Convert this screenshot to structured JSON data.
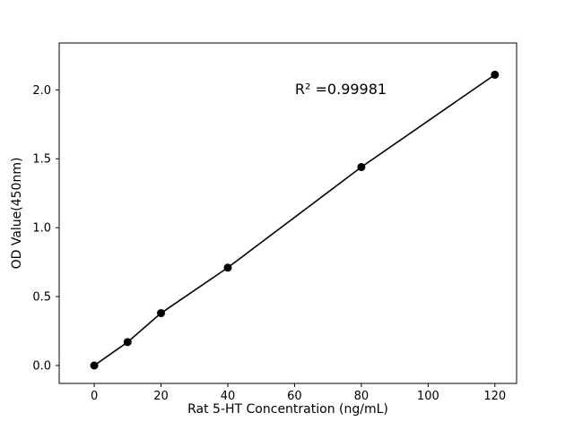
{
  "chart_data": {
    "type": "line",
    "title": "",
    "xlabel": "Rat 5-HT Concentration (ng/mL)",
    "ylabel": "OD Value(450nm)",
    "annotation": "R² =0.99981",
    "x": [
      0,
      10,
      20,
      40,
      80,
      120
    ],
    "y": [
      0.0,
      0.17,
      0.38,
      0.71,
      1.44,
      2.11
    ],
    "xticks": [
      0,
      20,
      40,
      60,
      80,
      100,
      120
    ],
    "yticks": [
      0,
      0.5,
      1,
      1.5,
      2
    ],
    "xlim": [
      -10.5,
      126.5
    ],
    "ylim": [
      -0.13,
      2.34
    ],
    "grid": false,
    "legend_position": "none",
    "marker": "circle",
    "line_color": "#000000",
    "marker_color": "#000000",
    "background_color": "#ffffff"
  }
}
